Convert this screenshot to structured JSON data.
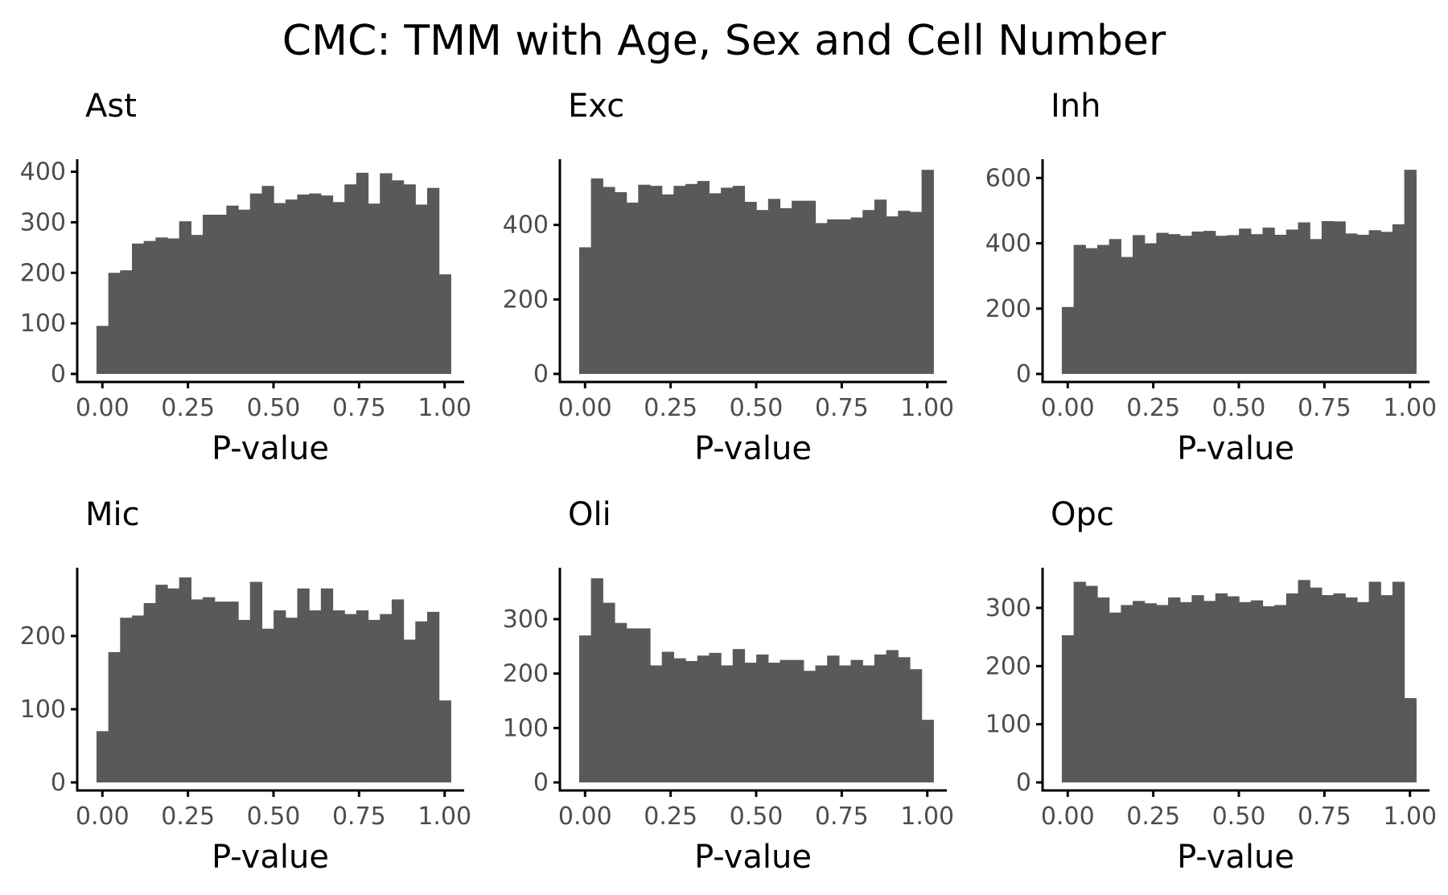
{
  "title": "CMC: TMM with Age, Sex and Cell Number",
  "colors": {
    "bar": "#595959",
    "axis": "#000000",
    "tick_text": "#4d4d4d"
  },
  "chart_data": [
    {
      "type": "bar",
      "title": "Ast",
      "xlabel": "P-value",
      "ylabel": "",
      "xlim": [
        -0.05,
        1.05
      ],
      "ylim": [
        0,
        420
      ],
      "xticks": [
        0,
        0.25,
        0.5,
        0.75,
        1
      ],
      "xtick_labels": [
        "0.00",
        "0.25",
        "0.50",
        "0.75",
        "1.00"
      ],
      "yticks": [
        0,
        100,
        200,
        300,
        400
      ],
      "ytick_labels": [
        "0",
        "100",
        "200",
        "300",
        "400"
      ],
      "bin_start": -0.0172,
      "bin_width": 0.0345,
      "values": [
        95,
        200,
        205,
        258,
        263,
        270,
        268,
        302,
        275,
        315,
        315,
        333,
        325,
        357,
        372,
        338,
        345,
        355,
        357,
        353,
        340,
        375,
        398,
        337,
        397,
        383,
        375,
        335,
        368,
        197
      ]
    },
    {
      "type": "bar",
      "title": "Exc",
      "xlabel": "P-value",
      "ylabel": "",
      "xlim": [
        -0.05,
        1.05
      ],
      "ylim": [
        0,
        570
      ],
      "xticks": [
        0,
        0.25,
        0.5,
        0.75,
        1
      ],
      "xtick_labels": [
        "0.00",
        "0.25",
        "0.50",
        "0.75",
        "1.00"
      ],
      "yticks": [
        0,
        200,
        400
      ],
      "ytick_labels": [
        "0",
        "200",
        "400"
      ],
      "bin_start": -0.0172,
      "bin_width": 0.0345,
      "values": [
        340,
        525,
        502,
        488,
        460,
        508,
        505,
        482,
        505,
        510,
        518,
        485,
        500,
        505,
        462,
        440,
        470,
        445,
        465,
        465,
        405,
        415,
        415,
        420,
        440,
        468,
        423,
        438,
        435,
        548
      ]
    },
    {
      "type": "bar",
      "title": "Inh",
      "xlabel": "P-value",
      "ylabel": "",
      "xlim": [
        -0.05,
        1.05
      ],
      "ylim": [
        0,
        650
      ],
      "xticks": [
        0,
        0.25,
        0.5,
        0.75,
        1
      ],
      "xtick_labels": [
        "0.00",
        "0.25",
        "0.50",
        "0.75",
        "1.00"
      ],
      "yticks": [
        0,
        200,
        400,
        600
      ],
      "ytick_labels": [
        "0",
        "200",
        "400",
        "600"
      ],
      "bin_start": -0.0172,
      "bin_width": 0.0345,
      "values": [
        205,
        395,
        385,
        395,
        413,
        358,
        425,
        400,
        432,
        428,
        423,
        436,
        438,
        423,
        425,
        445,
        428,
        448,
        426,
        442,
        464,
        413,
        468,
        467,
        430,
        426,
        440,
        435,
        458,
        625
      ]
    },
    {
      "type": "bar",
      "title": "Mic",
      "xlabel": "P-value",
      "ylabel": "",
      "xlim": [
        -0.05,
        1.05
      ],
      "ylim": [
        0,
        290
      ],
      "xticks": [
        0,
        0.25,
        0.5,
        0.75,
        1
      ],
      "xtick_labels": [
        "0.00",
        "0.25",
        "0.50",
        "0.75",
        "1.00"
      ],
      "yticks": [
        0,
        100,
        200
      ],
      "ytick_labels": [
        "0",
        "100",
        "200"
      ],
      "bin_start": -0.0172,
      "bin_width": 0.0345,
      "values": [
        70,
        178,
        225,
        228,
        245,
        270,
        265,
        280,
        250,
        253,
        247,
        247,
        222,
        274,
        210,
        235,
        225,
        265,
        235,
        265,
        235,
        230,
        235,
        222,
        230,
        250,
        195,
        220,
        233,
        112
      ]
    },
    {
      "type": "bar",
      "title": "Oli",
      "xlabel": "P-value",
      "ylabel": "",
      "xlim": [
        -0.05,
        1.05
      ],
      "ylim": [
        0,
        390
      ],
      "xticks": [
        0,
        0.25,
        0.5,
        0.75,
        1
      ],
      "xtick_labels": [
        "0.00",
        "0.25",
        "0.50",
        "0.75",
        "1.00"
      ],
      "yticks": [
        0,
        100,
        200,
        300
      ],
      "ytick_labels": [
        "0",
        "100",
        "200",
        "300"
      ],
      "bin_start": -0.0172,
      "bin_width": 0.0345,
      "values": [
        270,
        375,
        330,
        293,
        283,
        283,
        215,
        240,
        228,
        223,
        233,
        238,
        215,
        245,
        220,
        235,
        220,
        225,
        225,
        205,
        215,
        233,
        215,
        225,
        215,
        235,
        243,
        230,
        208,
        115
      ]
    },
    {
      "type": "bar",
      "title": "Opc",
      "xlabel": "P-value",
      "ylabel": "",
      "xlim": [
        -0.05,
        1.05
      ],
      "ylim": [
        0,
        365
      ],
      "xticks": [
        0,
        0.25,
        0.5,
        0.75,
        1
      ],
      "xtick_labels": [
        "0.00",
        "0.25",
        "0.50",
        "0.75",
        "1.00"
      ],
      "yticks": [
        0,
        100,
        200,
        300
      ],
      "ytick_labels": [
        "0",
        "100",
        "200",
        "300"
      ],
      "bin_start": -0.0172,
      "bin_width": 0.0345,
      "values": [
        253,
        345,
        338,
        318,
        292,
        305,
        312,
        308,
        305,
        318,
        310,
        322,
        312,
        325,
        320,
        310,
        313,
        303,
        305,
        325,
        348,
        335,
        322,
        325,
        318,
        310,
        345,
        322,
        345,
        145
      ]
    }
  ]
}
